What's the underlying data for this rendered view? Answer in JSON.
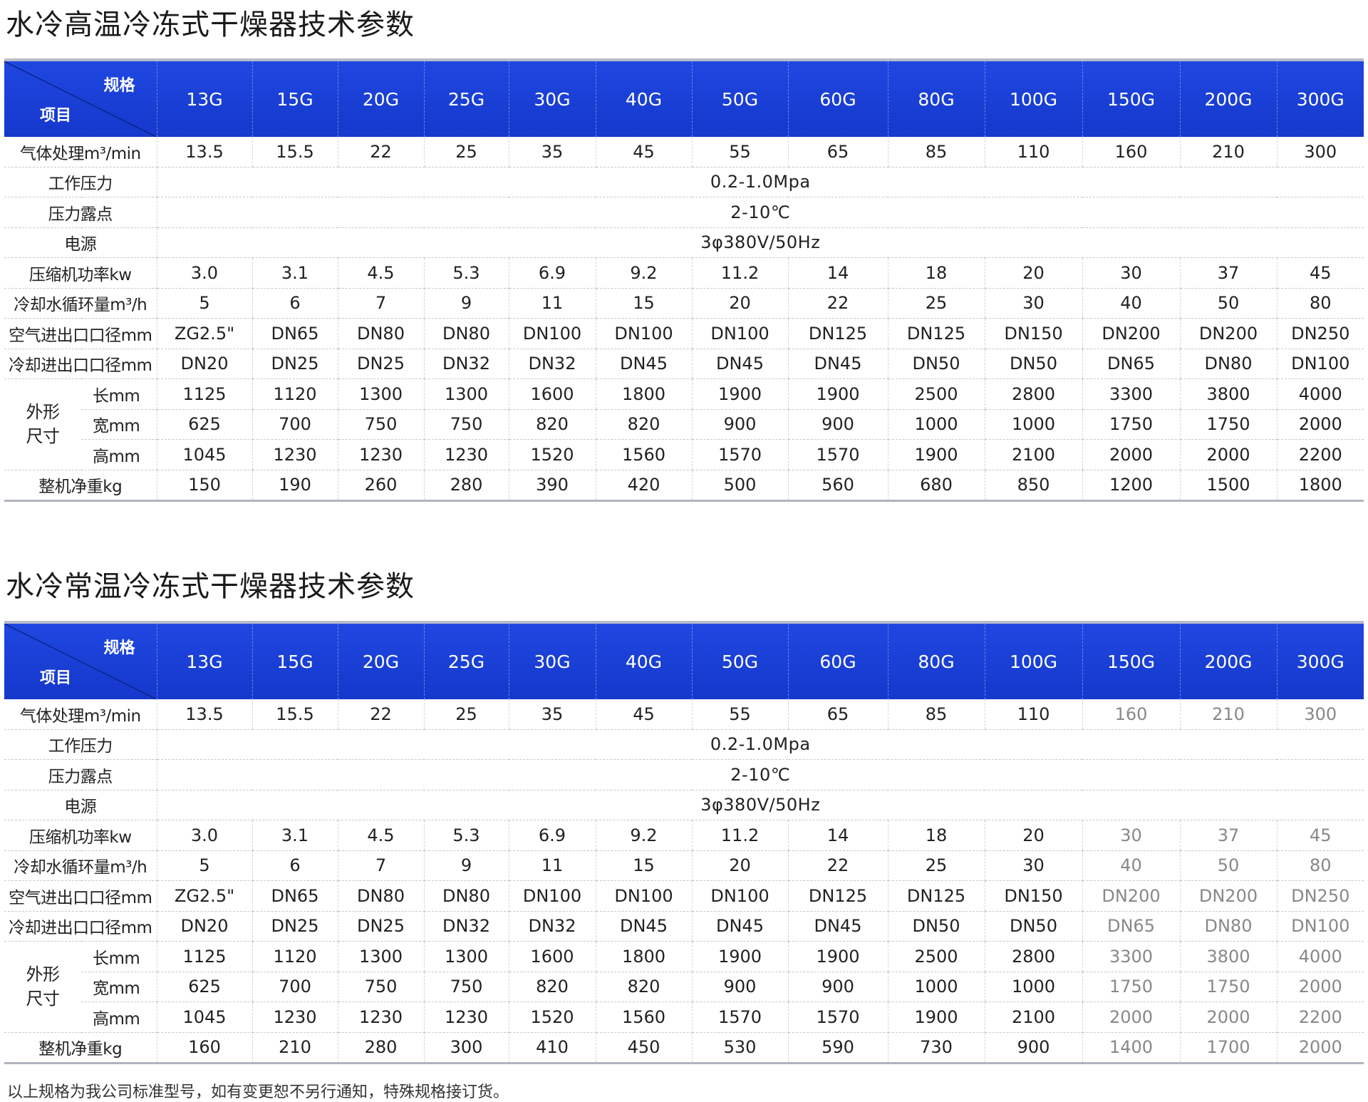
{
  "tables": [
    {
      "title": "水冷高温冷冻式干燥器技术参数",
      "corner": {
        "spec": "规格",
        "item": "项目"
      },
      "models": [
        "13G",
        "15G",
        "20G",
        "25G",
        "30G",
        "40G",
        "50G",
        "60G",
        "80G",
        "100G",
        "150G",
        "200G",
        "300G"
      ],
      "rows": [
        {
          "label": "气体处理m³/min",
          "values": [
            "13.5",
            "15.5",
            "22",
            "25",
            "35",
            "45",
            "55",
            "65",
            "85",
            "110",
            "160",
            "210",
            "300"
          ]
        },
        {
          "label": "工作压力",
          "span": "0.2-1.0Mpa"
        },
        {
          "label": "压力露点",
          "span": "2-10℃"
        },
        {
          "label": "电源",
          "span": "3φ380V/50Hz"
        },
        {
          "label": "压缩机功率kw",
          "values": [
            "3.0",
            "3.1",
            "4.5",
            "5.3",
            "6.9",
            "9.2",
            "11.2",
            "14",
            "18",
            "20",
            "30",
            "37",
            "45"
          ]
        },
        {
          "label": "冷却水循环量m³/h",
          "values": [
            "5",
            "6",
            "7",
            "9",
            "11",
            "15",
            "20",
            "22",
            "25",
            "30",
            "40",
            "50",
            "80"
          ]
        },
        {
          "label": "空气进出口口径mm",
          "values": [
            "ZG2.5\"",
            "DN65",
            "DN80",
            "DN80",
            "DN100",
            "DN100",
            "DN100",
            "DN125",
            "DN125",
            "DN150",
            "DN200",
            "DN200",
            "DN250"
          ]
        },
        {
          "label": "冷却进出口口径mm",
          "values": [
            "DN20",
            "DN25",
            "DN25",
            "DN32",
            "DN32",
            "DN45",
            "DN45",
            "DN45",
            "DN50",
            "DN50",
            "DN65",
            "DN80",
            "DN100"
          ]
        },
        {
          "group": "外形尺寸",
          "label": "长mm",
          "values": [
            "1125",
            "1120",
            "1300",
            "1300",
            "1600",
            "1800",
            "1900",
            "1900",
            "2500",
            "2800",
            "3300",
            "3800",
            "4000"
          ]
        },
        {
          "group": "外形尺寸",
          "label": "宽mm",
          "values": [
            "625",
            "700",
            "750",
            "750",
            "820",
            "820",
            "900",
            "900",
            "1000",
            "1000",
            "1750",
            "1750",
            "2000"
          ]
        },
        {
          "group": "外形尺寸",
          "label": "高mm",
          "values": [
            "1045",
            "1230",
            "1230",
            "1230",
            "1520",
            "1560",
            "1570",
            "1570",
            "1900",
            "2100",
            "2000",
            "2000",
            "2200"
          ]
        },
        {
          "label": "整机净重kg",
          "values": [
            "150",
            "190",
            "260",
            "280",
            "390",
            "420",
            "500",
            "560",
            "680",
            "850",
            "1200",
            "1500",
            "1800"
          ]
        }
      ]
    },
    {
      "title": "水冷常温冷冻式干燥器技术参数",
      "corner": {
        "spec": "规格",
        "item": "项目"
      },
      "models": [
        "13G",
        "15G",
        "20G",
        "25G",
        "30G",
        "40G",
        "50G",
        "60G",
        "80G",
        "100G",
        "150G",
        "200G",
        "300G"
      ],
      "rows": [
        {
          "label": "气体处理m³/min",
          "values": [
            "13.5",
            "15.5",
            "22",
            "25",
            "35",
            "45",
            "55",
            "65",
            "85",
            "110",
            "160",
            "210",
            "300"
          ]
        },
        {
          "label": "工作压力",
          "span": "0.2-1.0Mpa"
        },
        {
          "label": "压力露点",
          "span": "2-10℃"
        },
        {
          "label": "电源",
          "span": "3φ380V/50Hz"
        },
        {
          "label": "压缩机功率kw",
          "values": [
            "3.0",
            "3.1",
            "4.5",
            "5.3",
            "6.9",
            "9.2",
            "11.2",
            "14",
            "18",
            "20",
            "30",
            "37",
            "45"
          ]
        },
        {
          "label": "冷却水循环量m³/h",
          "values": [
            "5",
            "6",
            "7",
            "9",
            "11",
            "15",
            "20",
            "22",
            "25",
            "30",
            "40",
            "50",
            "80"
          ]
        },
        {
          "label": "空气进出口口径mm",
          "values": [
            "ZG2.5\"",
            "DN65",
            "DN80",
            "DN80",
            "DN100",
            "DN100",
            "DN100",
            "DN125",
            "DN125",
            "DN150",
            "DN200",
            "DN200",
            "DN250"
          ]
        },
        {
          "label": "冷却进出口口径mm",
          "values": [
            "DN20",
            "DN25",
            "DN25",
            "DN32",
            "DN32",
            "DN45",
            "DN45",
            "DN45",
            "DN50",
            "DN50",
            "DN65",
            "DN80",
            "DN100"
          ]
        },
        {
          "group": "外形尺寸",
          "label": "长mm",
          "values": [
            "1125",
            "1120",
            "1300",
            "1300",
            "1600",
            "1800",
            "1900",
            "1900",
            "2500",
            "2800",
            "3300",
            "3800",
            "4000"
          ]
        },
        {
          "group": "外形尺寸",
          "label": "宽mm",
          "values": [
            "625",
            "700",
            "750",
            "750",
            "820",
            "820",
            "900",
            "900",
            "1000",
            "1000",
            "1750",
            "1750",
            "2000"
          ]
        },
        {
          "group": "外形尺寸",
          "label": "高mm",
          "values": [
            "1045",
            "1230",
            "1230",
            "1230",
            "1520",
            "1560",
            "1570",
            "1570",
            "1900",
            "2100",
            "2000",
            "2000",
            "2200"
          ]
        },
        {
          "label": "整机净重kg",
          "values": [
            "160",
            "210",
            "280",
            "300",
            "410",
            "450",
            "530",
            "590",
            "730",
            "900",
            "1400",
            "1700",
            "2000"
          ]
        }
      ]
    }
  ],
  "footnote": "以上规格为我公司标准型号，如有变更恕不另行通知，特殊规格接订货。",
  "colors": {
    "header": "#1a3fd6",
    "header_text": "#ffffff"
  }
}
